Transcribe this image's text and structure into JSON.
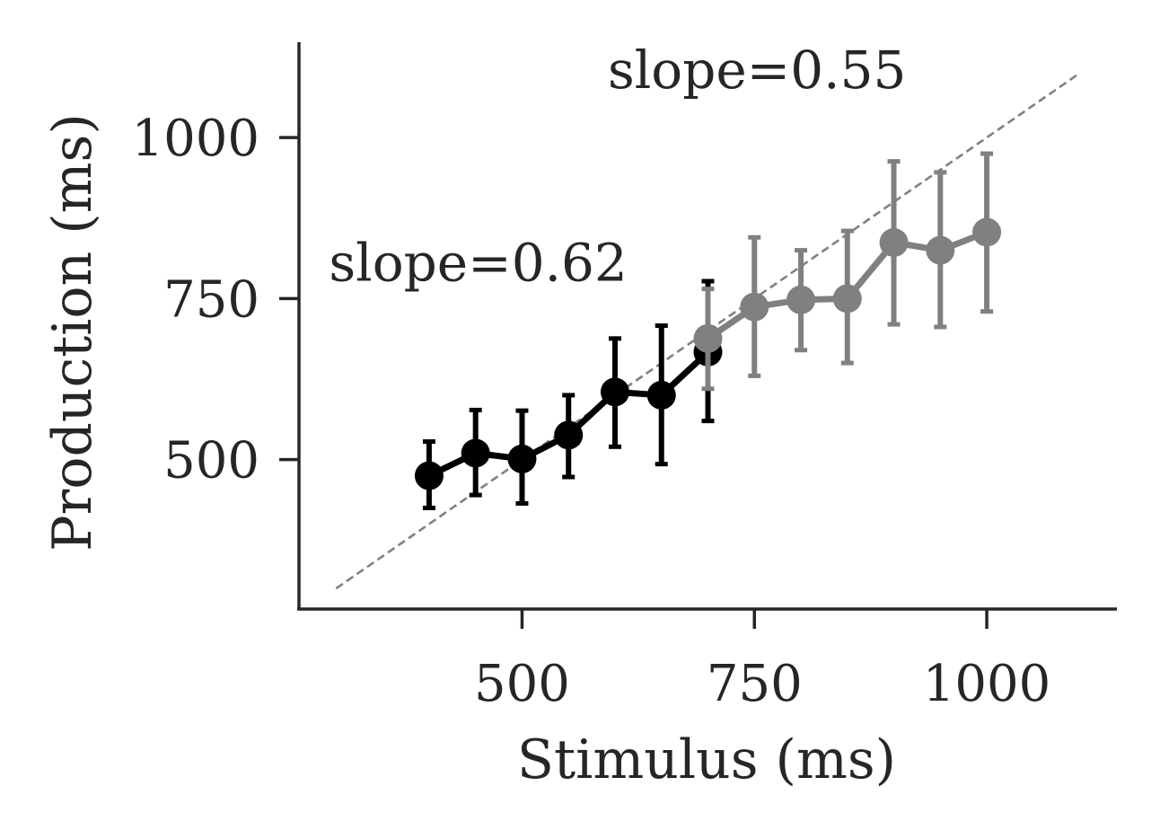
{
  "chart_data": {
    "type": "line",
    "xlabel": "Stimulus (ms)",
    "ylabel": "Production (ms)",
    "xlim": [
      260,
      1140
    ],
    "ylim": [
      268,
      1148
    ],
    "x_ticks": [
      500,
      750,
      1000
    ],
    "y_ticks": [
      500,
      750,
      1000
    ],
    "x_tick_labels": [
      "500",
      "750",
      "1000"
    ],
    "y_tick_labels": [
      "500",
      "750",
      "1000"
    ],
    "grid": false,
    "identity_line": {
      "from": 300,
      "to": 1100,
      "style": "dashed",
      "color": "#808080"
    },
    "series": [
      {
        "color": "#000000",
        "points": [
          {
            "x": 400,
            "y": 475,
            "err_low": 425,
            "err_high": 528
          },
          {
            "x": 450,
            "y": 510,
            "err_low": 445,
            "err_high": 577
          },
          {
            "x": 500,
            "y": 501,
            "err_low": 432,
            "err_high": 576
          },
          {
            "x": 550,
            "y": 538,
            "err_low": 473,
            "err_high": 600
          },
          {
            "x": 600,
            "y": 605,
            "err_low": 520,
            "err_high": 688
          },
          {
            "x": 650,
            "y": 600,
            "err_low": 493,
            "err_high": 708
          },
          {
            "x": 700,
            "y": 667,
            "err_low": 560,
            "err_high": 777
          }
        ]
      },
      {
        "color": "#808080",
        "points": [
          {
            "x": 700,
            "y": 688,
            "err_low": 610,
            "err_high": 765
          },
          {
            "x": 750,
            "y": 737,
            "err_low": 630,
            "err_high": 845
          },
          {
            "x": 800,
            "y": 748,
            "err_low": 670,
            "err_high": 825
          },
          {
            "x": 850,
            "y": 750,
            "err_low": 650,
            "err_high": 855
          },
          {
            "x": 900,
            "y": 837,
            "err_low": 710,
            "err_high": 963
          },
          {
            "x": 950,
            "y": 825,
            "err_low": 706,
            "err_high": 946
          },
          {
            "x": 1000,
            "y": 853,
            "err_low": 730,
            "err_high": 975
          }
        ]
      }
    ],
    "annotations": [
      {
        "text": "slope=0.62",
        "x": 300,
        "y": 778
      },
      {
        "text": "slope=0.55",
        "x": 600,
        "y": 1077
      }
    ]
  }
}
